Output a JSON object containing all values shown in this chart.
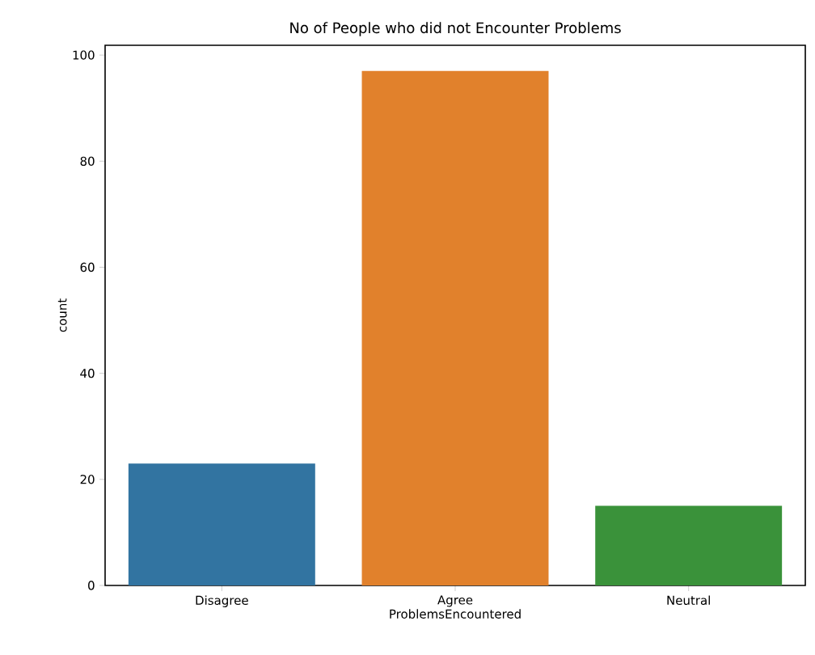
{
  "chart_data": {
    "type": "bar",
    "title": "No of People who did not  Encounter Problems",
    "xlabel": "ProblemsEncountered",
    "ylabel": "count",
    "categories": [
      "Disagree",
      "Agree",
      "Neutral"
    ],
    "values": [
      23,
      97,
      15
    ],
    "colors": [
      "#3274a1",
      "#e1812c",
      "#3a923a"
    ],
    "ylim": [
      0,
      101.85
    ],
    "yticks": [
      0,
      20,
      40,
      60,
      80,
      100
    ]
  }
}
